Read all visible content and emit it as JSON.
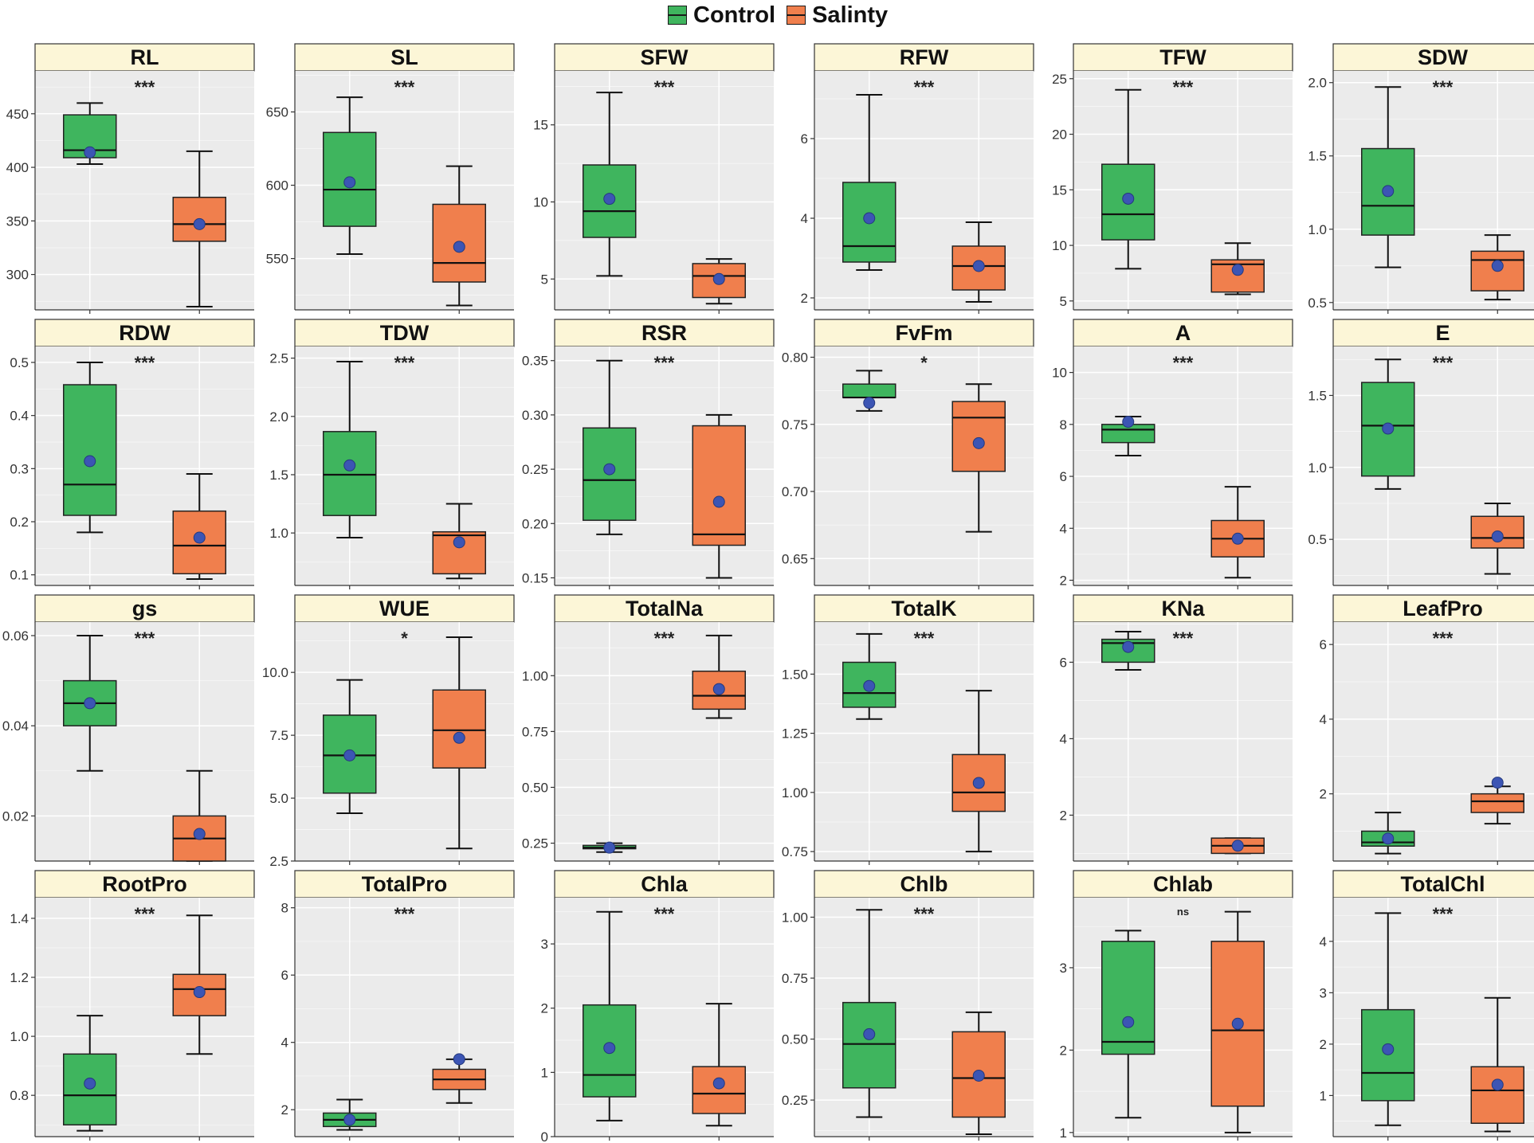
{
  "legend": {
    "items": [
      {
        "label": "Control",
        "color": "#3fb55e"
      },
      {
        "label": "Salinty",
        "color": "#f07f4d"
      }
    ]
  },
  "colors": {
    "control": "#3fb55e",
    "salinity": "#f07f4d",
    "mean_point": "#3c55b4",
    "panel_bg": "#ebebeb",
    "strip_bg": "#fcf6d7",
    "grid": "#ffffff"
  },
  "chart_data": [
    {
      "type": "box",
      "title": "RL",
      "signif": "***",
      "ylim": [
        267,
        490
      ],
      "yticks": [
        300,
        350,
        400,
        450
      ],
      "tick_labels": [
        "300",
        "350",
        "400",
        "450"
      ],
      "boxes": [
        {
          "group": "Control",
          "min": 403,
          "q1": 409,
          "median": 416,
          "q3": 449,
          "max": 460,
          "mean": 414
        },
        {
          "group": "Salinty",
          "min": 270,
          "q1": 331,
          "median": 347,
          "q3": 372,
          "max": 415,
          "mean": 347
        }
      ]
    },
    {
      "type": "box",
      "title": "SL",
      "signif": "***",
      "ylim": [
        515,
        678
      ],
      "yticks": [
        550,
        600,
        650
      ],
      "tick_labels": [
        "550",
        "600",
        "650"
      ],
      "boxes": [
        {
          "group": "Control",
          "min": 553,
          "q1": 572,
          "median": 597,
          "q3": 636,
          "max": 660,
          "mean": 602
        },
        {
          "group": "Salinty",
          "min": 518,
          "q1": 534,
          "median": 547,
          "q3": 587,
          "max": 613,
          "mean": 558
        }
      ]
    },
    {
      "type": "box",
      "title": "SFW",
      "signif": "***",
      "ylim": [
        3.0,
        18.5
      ],
      "yticks": [
        5,
        10,
        15
      ],
      "tick_labels": [
        "5",
        "10",
        "15"
      ],
      "boxes": [
        {
          "group": "Control",
          "min": 5.2,
          "q1": 7.7,
          "median": 9.4,
          "q3": 12.4,
          "max": 17.1,
          "mean": 10.2
        },
        {
          "group": "Salinty",
          "min": 3.4,
          "q1": 3.8,
          "median": 5.2,
          "q3": 6.0,
          "max": 6.3,
          "mean": 5.0
        }
      ]
    },
    {
      "type": "box",
      "title": "RFW",
      "signif": "***",
      "ylim": [
        1.7,
        7.7
      ],
      "yticks": [
        2,
        4,
        6
      ],
      "tick_labels": [
        "2",
        "4",
        "6"
      ],
      "boxes": [
        {
          "group": "Control",
          "min": 2.7,
          "q1": 2.9,
          "median": 3.3,
          "q3": 4.9,
          "max": 7.1,
          "mean": 4.0
        },
        {
          "group": "Salinty",
          "min": 1.9,
          "q1": 2.2,
          "median": 2.8,
          "q3": 3.3,
          "max": 3.9,
          "mean": 2.8
        }
      ]
    },
    {
      "type": "box",
      "title": "TFW",
      "signif": "***",
      "ylim": [
        4.2,
        25.7
      ],
      "yticks": [
        5,
        10,
        15,
        20,
        25
      ],
      "tick_labels": [
        "5",
        "10",
        "15",
        "20",
        "25"
      ],
      "boxes": [
        {
          "group": "Control",
          "min": 7.9,
          "q1": 10.5,
          "median": 12.8,
          "q3": 17.3,
          "max": 24.0,
          "mean": 14.2
        },
        {
          "group": "Salinty",
          "min": 5.6,
          "q1": 5.8,
          "median": 8.3,
          "q3": 8.7,
          "max": 10.2,
          "mean": 7.8
        }
      ]
    },
    {
      "type": "box",
      "title": "SDW",
      "signif": "***",
      "ylim": [
        0.45,
        2.08
      ],
      "yticks": [
        0.5,
        1.0,
        1.5,
        2.0
      ],
      "tick_labels": [
        "0.5",
        "1.0",
        "1.5",
        "2.0"
      ],
      "boxes": [
        {
          "group": "Control",
          "min": 0.74,
          "q1": 0.96,
          "median": 1.16,
          "q3": 1.55,
          "max": 1.97,
          "mean": 1.26
        },
        {
          "group": "Salinty",
          "min": 0.52,
          "q1": 0.58,
          "median": 0.79,
          "q3": 0.85,
          "max": 0.96,
          "mean": 0.75
        }
      ]
    },
    {
      "type": "box",
      "title": "RDW",
      "signif": "***",
      "ylim": [
        0.08,
        0.53
      ],
      "yticks": [
        0.1,
        0.2,
        0.3,
        0.4,
        0.5
      ],
      "tick_labels": [
        "0.1",
        "0.2",
        "0.3",
        "0.4",
        "0.5"
      ],
      "boxes": [
        {
          "group": "Control",
          "min": 0.18,
          "q1": 0.212,
          "median": 0.27,
          "q3": 0.458,
          "max": 0.5,
          "mean": 0.314
        },
        {
          "group": "Salinty",
          "min": 0.092,
          "q1": 0.102,
          "median": 0.155,
          "q3": 0.22,
          "max": 0.29,
          "mean": 0.17
        }
      ]
    },
    {
      "type": "box",
      "title": "TDW",
      "signif": "***",
      "ylim": [
        0.55,
        2.6
      ],
      "yticks": [
        1.0,
        1.5,
        2.0,
        2.5
      ],
      "tick_labels": [
        "1.0",
        "1.5",
        "2.0",
        "2.5"
      ],
      "boxes": [
        {
          "group": "Control",
          "min": 0.96,
          "q1": 1.15,
          "median": 1.5,
          "q3": 1.87,
          "max": 2.47,
          "mean": 1.58
        },
        {
          "group": "Salinty",
          "min": 0.61,
          "q1": 0.65,
          "median": 0.98,
          "q3": 1.01,
          "max": 1.25,
          "mean": 0.92
        }
      ]
    },
    {
      "type": "box",
      "title": "RSR",
      "signif": "***",
      "ylim": [
        0.143,
        0.363
      ],
      "yticks": [
        0.15,
        0.2,
        0.25,
        0.3,
        0.35
      ],
      "tick_labels": [
        "0.15",
        "0.20",
        "0.25",
        "0.30",
        "0.35"
      ],
      "boxes": [
        {
          "group": "Control",
          "min": 0.19,
          "q1": 0.203,
          "median": 0.24,
          "q3": 0.288,
          "max": 0.35,
          "mean": 0.25
        },
        {
          "group": "Salinty",
          "min": 0.15,
          "q1": 0.18,
          "median": 0.19,
          "q3": 0.29,
          "max": 0.3,
          "mean": 0.22
        }
      ]
    },
    {
      "type": "box",
      "title": "FvFm",
      "signif": "*",
      "ylim": [
        0.63,
        0.808
      ],
      "yticks": [
        0.65,
        0.7,
        0.75,
        0.8
      ],
      "tick_labels": [
        "0.65",
        "0.70",
        "0.75",
        "0.80"
      ],
      "boxes": [
        {
          "group": "Control",
          "min": 0.76,
          "q1": 0.77,
          "median": 0.77,
          "q3": 0.78,
          "max": 0.79,
          "mean": 0.766
        },
        {
          "group": "Salinty",
          "min": 0.67,
          "q1": 0.715,
          "median": 0.755,
          "q3": 0.767,
          "max": 0.78,
          "mean": 0.736
        }
      ]
    },
    {
      "type": "box",
      "title": "A",
      "signif": "***",
      "ylim": [
        1.8,
        11.0
      ],
      "yticks": [
        2,
        4,
        6,
        8,
        10
      ],
      "tick_labels": [
        "2",
        "4",
        "6",
        "8",
        "10"
      ],
      "boxes": [
        {
          "group": "Control",
          "min": 6.8,
          "q1": 7.3,
          "median": 7.8,
          "q3": 8.0,
          "max": 8.3,
          "mean": 8.1
        },
        {
          "group": "Salinty",
          "min": 2.1,
          "q1": 2.9,
          "median": 3.6,
          "q3": 4.3,
          "max": 5.6,
          "mean": 3.6
        }
      ]
    },
    {
      "type": "box",
      "title": "E",
      "signif": "***",
      "ylim": [
        0.18,
        1.84
      ],
      "yticks": [
        0.5,
        1.0,
        1.5
      ],
      "tick_labels": [
        "0.5",
        "1.0",
        "1.5"
      ],
      "boxes": [
        {
          "group": "Control",
          "min": 0.85,
          "q1": 0.94,
          "median": 1.29,
          "q3": 1.59,
          "max": 1.75,
          "mean": 1.27
        },
        {
          "group": "Salinty",
          "min": 0.26,
          "q1": 0.44,
          "median": 0.51,
          "q3": 0.66,
          "max": 0.75,
          "mean": 0.52
        }
      ]
    },
    {
      "type": "box",
      "title": "gs",
      "signif": "***",
      "ylim": [
        0.01,
        0.063
      ],
      "yticks": [
        0.02,
        0.04,
        0.06
      ],
      "tick_labels": [
        "0.02",
        "0.04",
        "0.06"
      ],
      "boxes": [
        {
          "group": "Control",
          "min": 0.03,
          "q1": 0.04,
          "median": 0.045,
          "q3": 0.05,
          "max": 0.06,
          "mean": 0.045
        },
        {
          "group": "Salinty",
          "min": 0.01,
          "q1": 0.01,
          "median": 0.015,
          "q3": 0.02,
          "max": 0.03,
          "mean": 0.016
        }
      ]
    },
    {
      "type": "box",
      "title": "WUE",
      "signif": "*",
      "ylim": [
        2.5,
        12.0
      ],
      "yticks": [
        2.5,
        5.0,
        7.5,
        10.0
      ],
      "tick_labels": [
        "2.5",
        "5.0",
        "7.5",
        "10.0"
      ],
      "boxes": [
        {
          "group": "Control",
          "min": 4.4,
          "q1": 5.2,
          "median": 6.7,
          "q3": 8.3,
          "max": 9.7,
          "mean": 6.7
        },
        {
          "group": "Salinty",
          "min": 3.0,
          "q1": 6.2,
          "median": 7.7,
          "q3": 9.3,
          "max": 11.4,
          "mean": 7.4
        }
      ]
    },
    {
      "type": "box",
      "title": "TotalNa",
      "signif": "***",
      "ylim": [
        0.17,
        1.24
      ],
      "yticks": [
        0.25,
        0.5,
        0.75,
        1.0
      ],
      "tick_labels": [
        "0.25",
        "0.50",
        "0.75",
        "1.00"
      ],
      "boxes": [
        {
          "group": "Control",
          "min": 0.21,
          "q1": 0.225,
          "median": 0.23,
          "q3": 0.24,
          "max": 0.25,
          "mean": 0.23
        },
        {
          "group": "Salinty",
          "min": 0.81,
          "q1": 0.85,
          "median": 0.91,
          "q3": 1.02,
          "max": 1.18,
          "mean": 0.94
        }
      ]
    },
    {
      "type": "box",
      "title": "TotalK",
      "signif": "***",
      "ylim": [
        0.71,
        1.72
      ],
      "yticks": [
        0.75,
        1.0,
        1.25,
        1.5
      ],
      "tick_labels": [
        "0.75",
        "1.00",
        "1.25",
        "1.50"
      ],
      "boxes": [
        {
          "group": "Control",
          "min": 1.31,
          "q1": 1.36,
          "median": 1.42,
          "q3": 1.55,
          "max": 1.67,
          "mean": 1.45
        },
        {
          "group": "Salinty",
          "min": 0.75,
          "q1": 0.92,
          "median": 1.0,
          "q3": 1.16,
          "max": 1.43,
          "mean": 1.04
        }
      ]
    },
    {
      "type": "box",
      "title": "KNa",
      "signif": "***",
      "ylim": [
        0.8,
        7.05
      ],
      "yticks": [
        2,
        4,
        6
      ],
      "tick_labels": [
        "2",
        "4",
        "6"
      ],
      "boxes": [
        {
          "group": "Control",
          "min": 5.8,
          "q1": 6.0,
          "median": 6.5,
          "q3": 6.6,
          "max": 6.8,
          "mean": 6.4
        },
        {
          "group": "Salinty",
          "min": 1.0,
          "q1": 1.0,
          "median": 1.2,
          "q3": 1.4,
          "max": 1.4,
          "mean": 1.2
        }
      ]
    },
    {
      "type": "box",
      "title": "LeafPro",
      "signif": "***",
      "ylim": [
        0.2,
        6.6
      ],
      "yticks": [
        2,
        4,
        6
      ],
      "tick_labels": [
        "2",
        "4",
        "6"
      ],
      "boxes": [
        {
          "group": "Control",
          "min": 0.4,
          "q1": 0.6,
          "median": 0.7,
          "q3": 1.0,
          "max": 1.5,
          "mean": 0.8
        },
        {
          "group": "Salinty",
          "min": 1.2,
          "q1": 1.5,
          "median": 1.8,
          "q3": 2.0,
          "max": 2.2,
          "mean": 2.3
        }
      ]
    },
    {
      "type": "box",
      "title": "RootPro",
      "signif": "***",
      "ylim": [
        0.66,
        1.47
      ],
      "yticks": [
        0.8,
        1.0,
        1.2,
        1.4
      ],
      "tick_labels": [
        "0.8",
        "1.0",
        "1.2",
        "1.4"
      ],
      "boxes": [
        {
          "group": "Control",
          "min": 0.68,
          "q1": 0.7,
          "median": 0.8,
          "q3": 0.94,
          "max": 1.07,
          "mean": 0.84
        },
        {
          "group": "Salinty",
          "min": 0.94,
          "q1": 1.07,
          "median": 1.16,
          "q3": 1.21,
          "max": 1.41,
          "mean": 1.15
        }
      ]
    },
    {
      "type": "box",
      "title": "TotalPro",
      "signif": "***",
      "ylim": [
        1.2,
        8.3
      ],
      "yticks": [
        2,
        4,
        6,
        8
      ],
      "tick_labels": [
        "2",
        "4",
        "6",
        "8"
      ],
      "boxes": [
        {
          "group": "Control",
          "min": 1.4,
          "q1": 1.5,
          "median": 1.7,
          "q3": 1.9,
          "max": 2.3,
          "mean": 1.7
        },
        {
          "group": "Salinty",
          "min": 2.2,
          "q1": 2.6,
          "median": 2.9,
          "q3": 3.2,
          "max": 3.5,
          "mean": 3.5
        }
      ]
    },
    {
      "type": "box",
      "title": "Chla",
      "signif": "***",
      "ylim": [
        0.0,
        3.72
      ],
      "yticks": [
        0,
        1,
        2,
        3
      ],
      "tick_labels": [
        "0",
        "1",
        "2",
        "3"
      ],
      "boxes": [
        {
          "group": "Control",
          "min": 0.25,
          "q1": 0.62,
          "median": 0.96,
          "q3": 2.05,
          "max": 3.5,
          "mean": 1.38
        },
        {
          "group": "Salinty",
          "min": 0.17,
          "q1": 0.36,
          "median": 0.67,
          "q3": 1.09,
          "max": 2.07,
          "mean": 0.83
        }
      ]
    },
    {
      "type": "box",
      "title": "Chlb",
      "signif": "***",
      "ylim": [
        0.1,
        1.08
      ],
      "yticks": [
        0.25,
        0.5,
        0.75,
        1.0
      ],
      "tick_labels": [
        "0.25",
        "0.50",
        "0.75",
        "1.00"
      ],
      "boxes": [
        {
          "group": "Control",
          "min": 0.18,
          "q1": 0.3,
          "median": 0.48,
          "q3": 0.65,
          "max": 1.03,
          "mean": 0.52
        },
        {
          "group": "Salinty",
          "min": 0.11,
          "q1": 0.18,
          "median": 0.34,
          "q3": 0.53,
          "max": 0.61,
          "mean": 0.35
        }
      ]
    },
    {
      "type": "box",
      "title": "Chlab",
      "signif": "ns",
      "ylim": [
        0.95,
        3.85
      ],
      "yticks": [
        1,
        2,
        3
      ],
      "tick_labels": [
        "1",
        "2",
        "3"
      ],
      "boxes": [
        {
          "group": "Control",
          "min": 1.18,
          "q1": 1.95,
          "median": 2.1,
          "q3": 3.32,
          "max": 3.45,
          "mean": 2.34
        },
        {
          "group": "Salinty",
          "min": 1.0,
          "q1": 1.32,
          "median": 2.24,
          "q3": 3.32,
          "max": 3.68,
          "mean": 2.32
        }
      ]
    },
    {
      "type": "box",
      "title": "TotalChl",
      "signif": "***",
      "ylim": [
        0.2,
        4.85
      ],
      "yticks": [
        1,
        2,
        3,
        4
      ],
      "tick_labels": [
        "1",
        "2",
        "3",
        "4"
      ],
      "boxes": [
        {
          "group": "Control",
          "min": 0.42,
          "q1": 0.9,
          "median": 1.44,
          "q3": 2.67,
          "max": 4.55,
          "mean": 1.9
        },
        {
          "group": "Salinty",
          "min": 0.3,
          "q1": 0.46,
          "median": 1.1,
          "q3": 1.56,
          "max": 2.9,
          "mean": 1.21
        }
      ]
    }
  ]
}
